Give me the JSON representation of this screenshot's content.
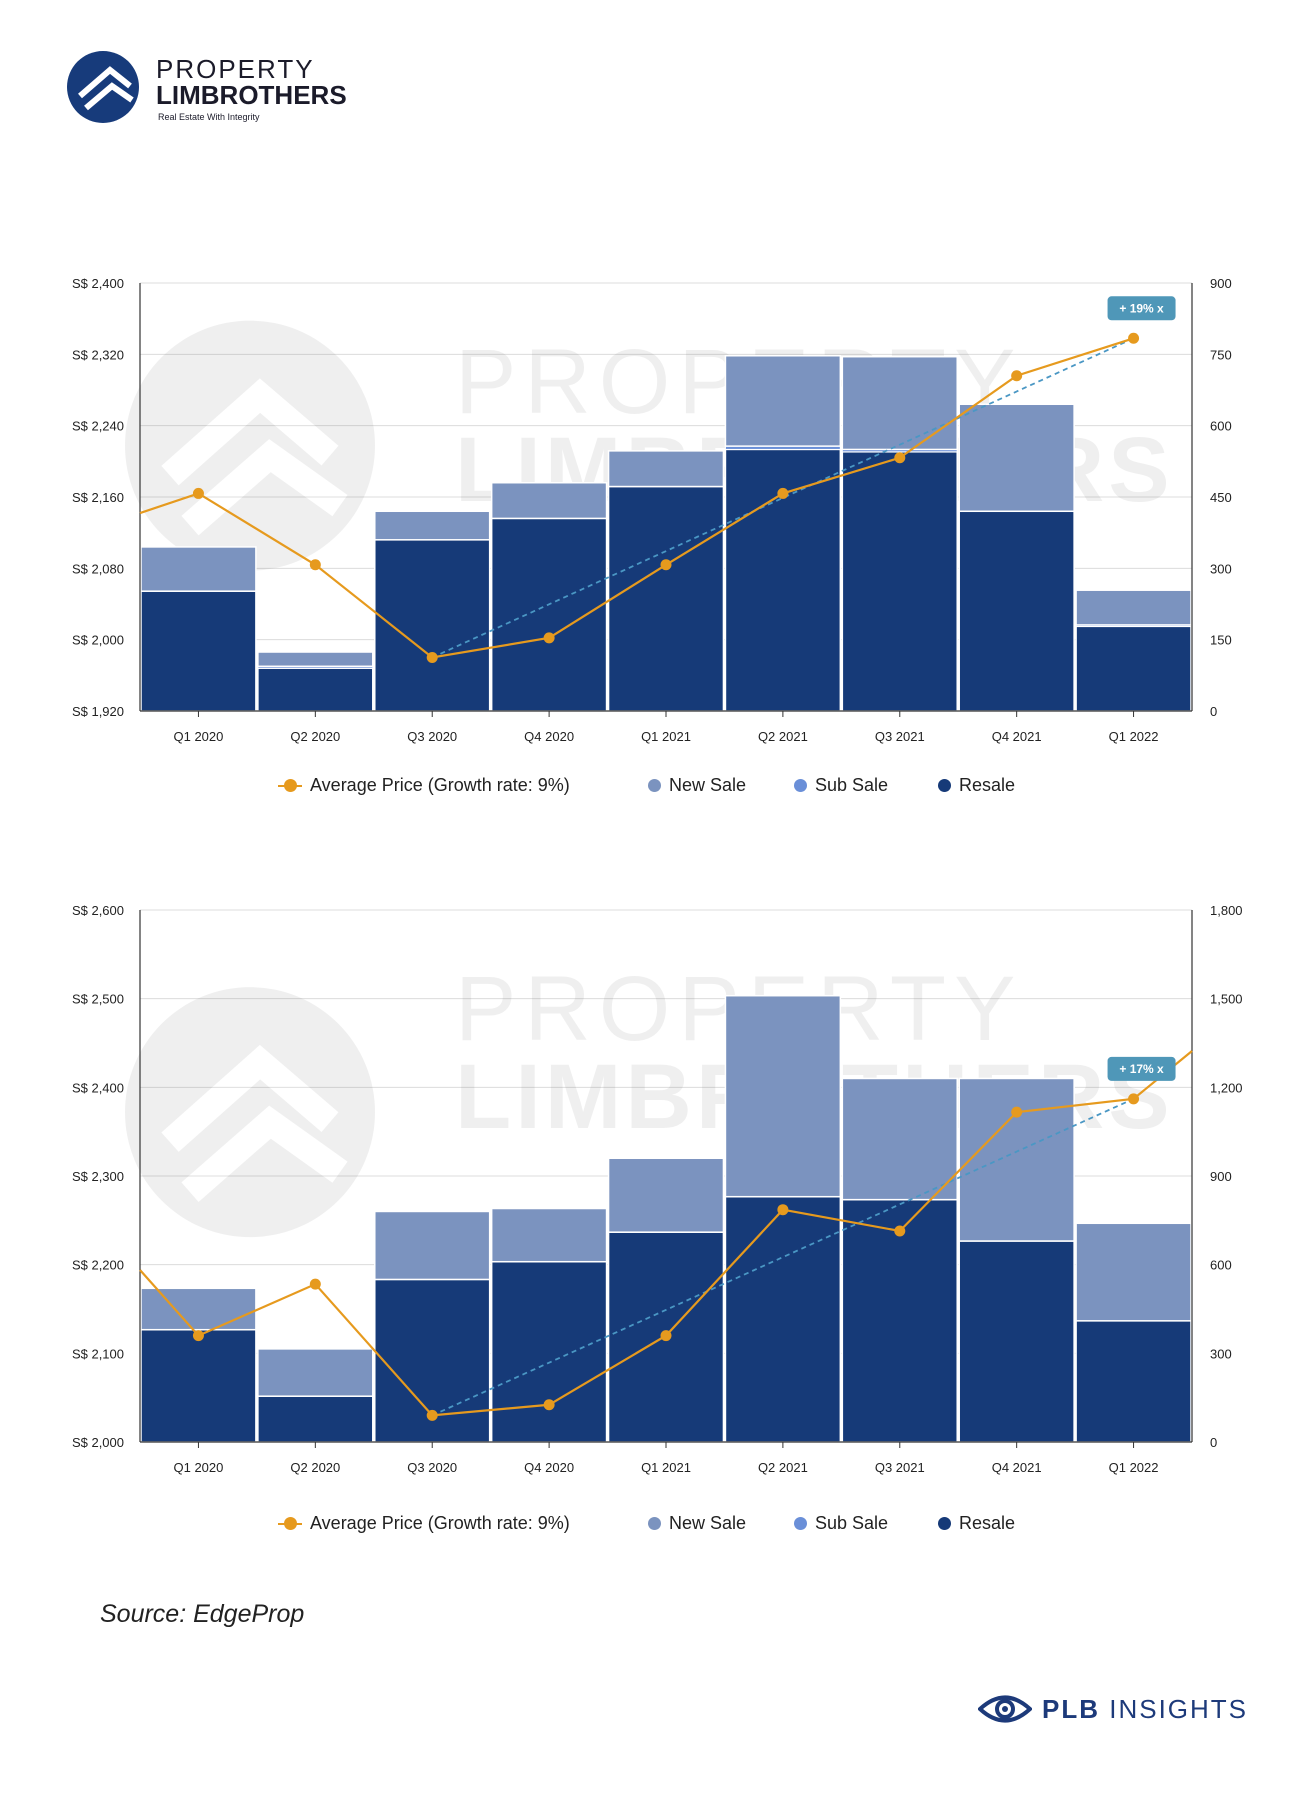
{
  "brand": {
    "line1": "PROPERTY",
    "line2": "LIMBROTHERS",
    "tagline": "Real Estate With Integrity"
  },
  "colors": {
    "new_sale": "#7b93bf",
    "sub_sale": "#6a8fd8",
    "resale": "#163a78",
    "avg_price": "#e69a1e",
    "trend": "#4a97c4",
    "badge": "#4f97b8"
  },
  "chart_data": [
    {
      "type": "bar",
      "categories": [
        "Q1 2020",
        "Q2 2020",
        "Q3 2020",
        "Q4 2020",
        "Q1 2021",
        "Q2 2021",
        "Q3 2021",
        "Q4 2021",
        "Q1 2022"
      ],
      "series": [
        {
          "name": "Resale",
          "kind": "bar",
          "axis": "right",
          "values": [
            252,
            90,
            360,
            405,
            472,
            550,
            545,
            420,
            178
          ]
        },
        {
          "name": "Sub Sale",
          "kind": "bar",
          "axis": "right",
          "values": [
            0,
            4,
            0,
            0,
            0,
            7,
            5,
            0,
            3
          ]
        },
        {
          "name": "New Sale",
          "kind": "bar",
          "axis": "right",
          "values": [
            93,
            30,
            60,
            75,
            75,
            190,
            195,
            225,
            73
          ]
        },
        {
          "name": "Average Price (Growth rate: 9%)",
          "kind": "line",
          "axis": "left",
          "values": [
            2164,
            2084,
            1980,
            2002,
            2084,
            2164,
            2204,
            2296,
            2338
          ]
        }
      ],
      "line_lead_in": 2142,
      "ylim_left": [
        1920,
        2400
      ],
      "ylim_right": [
        0,
        900
      ],
      "left_ticks": [
        "S$ 1,920",
        "S$ 2,000",
        "S$ 2,080",
        "S$ 2,160",
        "S$ 2,240",
        "S$ 2,320",
        "S$ 2,400"
      ],
      "right_ticks": [
        "0",
        "150",
        "300",
        "450",
        "600",
        "750",
        "900"
      ],
      "trend": {
        "from_index": 2,
        "to_index": 8,
        "from_value": 1980,
        "to_value": 2338
      },
      "badge": "+ 19% x",
      "legend": [
        "Average Price (Growth rate: 9%)",
        "New Sale",
        "Sub Sale",
        "Resale"
      ]
    },
    {
      "type": "bar",
      "categories": [
        "Q1 2020",
        "Q2 2020",
        "Q3 2020",
        "Q4 2020",
        "Q1 2021",
        "Q2 2021",
        "Q3 2021",
        "Q4 2021",
        "Q1 2022"
      ],
      "series": [
        {
          "name": "Resale",
          "kind": "bar",
          "axis": "right",
          "values": [
            380,
            155,
            550,
            610,
            710,
            830,
            820,
            680,
            410
          ]
        },
        {
          "name": "Sub Sale",
          "kind": "bar",
          "axis": "right",
          "values": [
            0,
            0,
            0,
            0,
            0,
            0,
            0,
            0,
            0
          ]
        },
        {
          "name": "New Sale",
          "kind": "bar",
          "axis": "right",
          "values": [
            140,
            160,
            230,
            180,
            250,
            680,
            410,
            550,
            330
          ]
        },
        {
          "name": "Average Price (Growth rate: 9%)",
          "kind": "line",
          "axis": "left",
          "values": [
            2120,
            2178,
            2030,
            2042,
            2120,
            2262,
            2238,
            2372,
            2387
          ]
        }
      ],
      "line_lead_in": 2194,
      "line_lead_out": 2441,
      "ylim_left": [
        2000,
        2600
      ],
      "ylim_right": [
        0,
        1800
      ],
      "left_ticks": [
        "S$ 2,000",
        "S$ 2,100",
        "S$ 2,200",
        "S$ 2,300",
        "S$ 2,400",
        "S$ 2,500",
        "S$ 2,600"
      ],
      "right_ticks": [
        "0",
        "300",
        "600",
        "900",
        "1,200",
        "1,500",
        "1,800"
      ],
      "trend": {
        "from_index": 2,
        "to_index": 8,
        "from_value": 2030,
        "to_value": 2387
      },
      "badge": "+ 17% x",
      "legend": [
        "Average Price (Growth rate: 9%)",
        "New Sale",
        "Sub Sale",
        "Resale"
      ]
    }
  ],
  "source": "Source: EdgeProp",
  "footer": {
    "brand_bold": "PLB",
    "brand_rest": " INSIGHTS"
  }
}
